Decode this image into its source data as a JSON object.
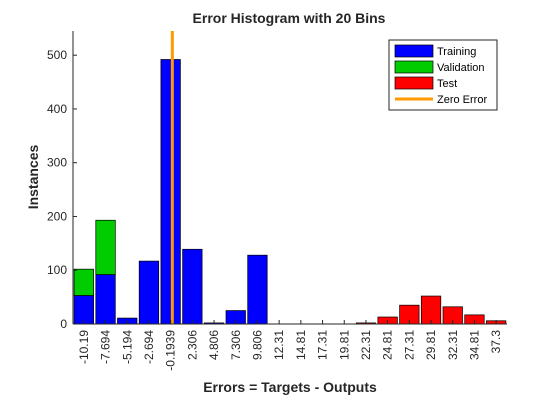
{
  "chart_data": {
    "type": "bar",
    "stacked": true,
    "title": "Error Histogram with 20 Bins",
    "xlabel": "Errors = Targets - Outputs",
    "ylabel": "Instances",
    "categories": [
      "-10.19",
      "-7.694",
      "-5.194",
      "-2.694",
      "-0.1939",
      "2.306",
      "4.806",
      "7.306",
      "9.806",
      "12.31",
      "14.81",
      "17.31",
      "19.81",
      "22.31",
      "24.81",
      "27.31",
      "29.81",
      "32.31",
      "34.81",
      "37.3"
    ],
    "ylim": [
      0,
      545
    ],
    "yticks": [
      0,
      100,
      200,
      300,
      400,
      500
    ],
    "series": [
      {
        "name": "Training",
        "color": "#0000ff",
        "values": [
          53,
          92,
          11,
          117,
          492,
          139,
          2,
          25,
          128,
          0,
          0,
          0,
          0,
          0,
          0,
          0,
          0,
          0,
          0,
          0
        ]
      },
      {
        "name": "Validation",
        "color": "#00cc00",
        "values": [
          49,
          101,
          0,
          0,
          0,
          0,
          0,
          0,
          0,
          0,
          0,
          0,
          0,
          0,
          0,
          0,
          0,
          0,
          0,
          0
        ]
      },
      {
        "name": "Test",
        "color": "#ff0000",
        "values": [
          0,
          0,
          0,
          0,
          0,
          0,
          0,
          0,
          0,
          0,
          0,
          0,
          0,
          2,
          13,
          35,
          52,
          32,
          17,
          6
        ]
      }
    ],
    "zero_error": {
      "name": "Zero Error",
      "color": "#ff9900",
      "x": 0
    },
    "legend": "top-right",
    "grid": false
  }
}
